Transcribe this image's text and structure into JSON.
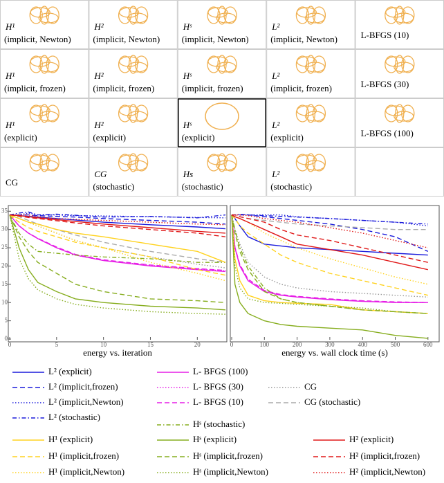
{
  "thumbnails": [
    {
      "label": "H¹",
      "note": "(implicit, Newton)"
    },
    {
      "label": "H²",
      "note": "(implicit, Newton)"
    },
    {
      "label": "Hˢ",
      "note": "(implicit, Newton)"
    },
    {
      "label": "L²",
      "note": "(implicit, Newton)"
    },
    {
      "label": "L-BFGS (10)"
    },
    {
      "label": "H¹",
      "note": "(implicit, frozen)"
    },
    {
      "label": "H²",
      "note": "(implicit, frozen)"
    },
    {
      "label": "Hˢ",
      "note": "(implicit, frozen)"
    },
    {
      "label": "L²",
      "note": "(implicit, frozen)"
    },
    {
      "label": "L-BFGS (30)"
    },
    {
      "label": "H¹",
      "note": "(explicit)"
    },
    {
      "label": "H²",
      "note": "(explicit)"
    },
    {
      "label": "Hˢ",
      "note": "(explicit)",
      "selected": true
    },
    {
      "label": "L²",
      "note": "(explicit)"
    },
    {
      "label": "L-BFGS (100)"
    },
    {
      "label": "CG"
    },
    {
      "label": "CG",
      "note": "(stochastic)"
    },
    {
      "label": "Hs",
      "note": "(stochastic)"
    },
    {
      "label": "L²",
      "note": "(stochastic)"
    }
  ],
  "chart_data": [
    {
      "type": "line",
      "x_label": "energy vs. iteration",
      "xlim": [
        0,
        23
      ],
      "xticks": [
        0,
        5,
        10,
        15,
        20
      ],
      "ylim": [
        0,
        36
      ],
      "yticks": [
        0,
        5,
        10,
        15,
        20,
        25,
        30,
        35
      ],
      "x": [
        0,
        1,
        2,
        3,
        5,
        7,
        10,
        15,
        20,
        23
      ],
      "series": [
        {
          "name": "L² (explicit)",
          "color": "#1a1adb",
          "dash": "solid",
          "values": [
            34,
            33.8,
            33.6,
            33.4,
            33,
            32.6,
            32,
            31.3,
            30.7,
            30.2
          ]
        },
        {
          "name": "L² (implicit,frozen)",
          "color": "#1a1adb",
          "dash": "dashed",
          "values": [
            34,
            34,
            34,
            33.8,
            33.6,
            33.4,
            33,
            32.5,
            32,
            31.5
          ]
        },
        {
          "name": "L² (implicit,Newton)",
          "color": "#1a1adb",
          "dash": "dotted",
          "values": [
            34,
            34,
            34.5,
            34,
            34,
            33.8,
            33.7,
            33.5,
            33.3,
            33.2
          ]
        },
        {
          "name": "L² (stochastic)",
          "color": "#1a1adb",
          "dash": "dashdot",
          "values": [
            34,
            34.5,
            34.8,
            34,
            34.2,
            33.9,
            33.4,
            33.6,
            33.2,
            34
          ]
        },
        {
          "name": "L- BFGS (100)",
          "color": "#e61ee6",
          "dash": "solid",
          "values": [
            34,
            31,
            29,
            27.5,
            25,
            23,
            21.5,
            20,
            19,
            18.5
          ]
        },
        {
          "name": "L- BFGS (30)",
          "color": "#e61ee6",
          "dash": "dotted",
          "values": [
            34,
            31,
            29,
            27.5,
            25,
            23,
            21.5,
            20.2,
            19.2,
            18.7
          ]
        },
        {
          "name": "L- BFGS (10)",
          "color": "#e61ee6",
          "dash": "dashed",
          "values": [
            34,
            31,
            29,
            27.6,
            25.2,
            23.2,
            21.7,
            20.3,
            19.3,
            18.8
          ]
        },
        {
          "name": "CG",
          "color": "#999999",
          "dash": "dotted",
          "values": [
            34,
            33,
            32,
            31,
            29,
            27,
            25,
            22.5,
            20.5,
            19.5
          ]
        },
        {
          "name": "CG (stochastic)",
          "color": "#aaaaaa",
          "dash": "dashed",
          "values": [
            34,
            33.5,
            32.5,
            31.5,
            30,
            28.5,
            26.5,
            24,
            22,
            21
          ]
        },
        {
          "name": "Hˢ (stochastic)",
          "color": "#86ad1e",
          "dash": "dashdot",
          "values": [
            34,
            29,
            26,
            24,
            23.5,
            23,
            22.5,
            22,
            21,
            21
          ]
        },
        {
          "name": "H¹ (explicit)",
          "color": "#ffd21e",
          "dash": "solid",
          "values": [
            34,
            33,
            32,
            31.5,
            30,
            29,
            28,
            26,
            24,
            21
          ]
        },
        {
          "name": "H¹ (implicit,frozen)",
          "color": "#ffd21e",
          "dash": "dashed",
          "values": [
            34,
            32,
            30.5,
            29.5,
            28,
            26.5,
            25,
            22.5,
            19,
            17.5
          ]
        },
        {
          "name": "H¹ (implicit,Newton)",
          "color": "#ffd21e",
          "dash": "dotted",
          "values": [
            34,
            33,
            32,
            31,
            29,
            27,
            25,
            21,
            18,
            16
          ]
        },
        {
          "name": "Hˢ (explicit)",
          "color": "#86ad1e",
          "dash": "solid",
          "values": [
            34,
            25,
            19,
            15.5,
            13,
            11,
            10,
            9,
            8.5,
            8
          ]
        },
        {
          "name": "Hˢ (implicit,frozen)",
          "color": "#86ad1e",
          "dash": "dashed",
          "values": [
            34,
            28,
            24,
            21,
            18,
            15,
            13,
            11,
            10.5,
            10
          ]
        },
        {
          "name": "Hˢ (implicit,Newton)",
          "color": "#86ad1e",
          "dash": "dotted",
          "values": [
            34,
            22,
            16.5,
            13.5,
            11,
            9.5,
            8.5,
            7.5,
            7,
            6.8
          ]
        },
        {
          "name": "H² (explicit)",
          "color": "#e01818",
          "dash": "solid",
          "values": [
            34,
            33.8,
            33.5,
            33.2,
            32.7,
            32.2,
            31.5,
            30.5,
            29.5,
            29
          ]
        },
        {
          "name": "H² (implicit,frozen)",
          "color": "#e01818",
          "dash": "dashed",
          "values": [
            34,
            33.7,
            33.3,
            33,
            32.4,
            31.8,
            31,
            30,
            29,
            28
          ]
        },
        {
          "name": "H² (implicit,Newton)",
          "color": "#e01818",
          "dash": "dotted",
          "values": [
            34,
            34,
            34,
            33.5,
            33,
            32.8,
            32.5,
            32,
            31.5,
            31.3
          ]
        }
      ]
    },
    {
      "type": "line",
      "x_label": "energy vs. wall clock time (s)",
      "xlim": [
        0,
        630
      ],
      "xticks": [
        0,
        100,
        200,
        300,
        400,
        500,
        600
      ],
      "ylim": [
        0,
        36
      ],
      "x": [
        0,
        10,
        25,
        50,
        100,
        150,
        200,
        300,
        400,
        500,
        600
      ],
      "series": [
        {
          "color": "#1a1adb",
          "dash": "solid",
          "values": [
            34,
            33,
            31,
            28,
            26,
            25.5,
            25,
            24.5,
            24,
            23.5,
            23
          ]
        },
        {
          "color": "#1a1adb",
          "dash": "dashed",
          "values": [
            34,
            34,
            34,
            34,
            33.5,
            33,
            32.5,
            31.5,
            30,
            28,
            24
          ]
        },
        {
          "color": "#1a1adb",
          "dash": "dotted",
          "values": [
            34,
            34,
            34,
            34,
            34,
            34,
            33.5,
            33,
            32.5,
            32,
            31
          ]
        },
        {
          "color": "#1a1adb",
          "dash": "dashdot",
          "values": [
            34,
            34,
            34.2,
            34,
            33.8,
            33.6,
            33.4,
            33,
            32.5,
            32,
            31.5
          ]
        },
        {
          "color": "#e61ee6",
          "dash": "solid",
          "values": [
            34,
            25,
            20,
            16,
            13,
            12,
            11.5,
            10.8,
            10.3,
            10,
            10
          ]
        },
        {
          "color": "#e61ee6",
          "dash": "dotted",
          "values": [
            34,
            25,
            20.2,
            16.2,
            13.2,
            12.1,
            11.6,
            10.9,
            10.4,
            10.1,
            10
          ]
        },
        {
          "color": "#e61ee6",
          "dash": "dashed",
          "values": [
            34,
            25.2,
            20.4,
            16.4,
            13.3,
            12.2,
            11.7,
            11,
            10.5,
            10.2,
            10
          ]
        },
        {
          "color": "#999999",
          "dash": "dotted",
          "values": [
            34,
            30,
            26,
            21,
            17,
            15,
            14,
            13,
            12.5,
            12,
            11.5
          ]
        },
        {
          "color": "#aaaaaa",
          "dash": "dashed",
          "values": [
            34,
            34,
            33.5,
            33,
            32.5,
            32,
            31.5,
            31,
            30.5,
            30,
            30
          ]
        },
        {
          "color": "#86ad1e",
          "dash": "dashdot",
          "values": [
            34,
            30,
            25,
            20,
            14,
            11,
            10,
            9,
            8,
            7.5,
            7
          ]
        },
        {
          "color": "#ffd21e",
          "dash": "solid",
          "values": [
            34,
            22,
            16,
            12,
            10.5,
            10,
            9.8,
            9.5,
            8,
            7.5,
            7
          ]
        },
        {
          "color": "#ffd21e",
          "dash": "dashed",
          "values": [
            34,
            33,
            31,
            29,
            26,
            23,
            21,
            18,
            16,
            14,
            12
          ]
        },
        {
          "color": "#ffd21e",
          "dash": "dotted",
          "values": [
            34,
            33.5,
            33,
            32,
            29,
            27,
            25,
            22,
            19.5,
            17,
            15
          ]
        },
        {
          "color": "#86ad1e",
          "dash": "solid",
          "values": [
            34,
            15,
            10,
            7,
            5,
            4,
            3.5,
            3,
            2.5,
            1,
            0.2
          ]
        },
        {
          "color": "#86ad1e",
          "dash": "dashed",
          "values": [
            34,
            29,
            24,
            19,
            13,
            11,
            10,
            9,
            8,
            7.5,
            7
          ]
        },
        {
          "color": "#86ad1e",
          "dash": "dotted",
          "values": [
            34,
            20,
            14,
            11,
            10,
            9.8,
            9.5,
            9,
            8.5,
            7.5,
            7
          ]
        },
        {
          "color": "#e01818",
          "dash": "solid",
          "values": [
            34,
            33.5,
            33,
            32,
            30,
            28,
            26,
            24.5,
            23,
            21,
            19
          ]
        },
        {
          "color": "#e01818",
          "dash": "dashed",
          "values": [
            34,
            34,
            33.5,
            33,
            32,
            30,
            28.5,
            27,
            25,
            23,
            21
          ]
        },
        {
          "color": "#e01818",
          "dash": "dotted",
          "values": [
            34,
            34,
            34,
            33.8,
            33,
            32.5,
            32,
            30.5,
            29,
            27,
            25
          ]
        }
      ]
    }
  ]
}
